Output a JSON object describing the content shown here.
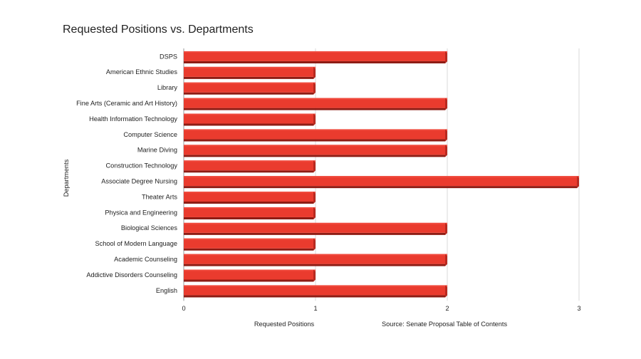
{
  "chart_data": {
    "type": "bar",
    "orientation": "horizontal",
    "title": "Requested Positions vs. Departments",
    "xlabel": "Requested Positions",
    "ylabel": "Departments",
    "source_note": "Source: Senate Proposal Table of Contents",
    "categories": [
      "DSPS",
      "American Ethnic Studies",
      "Library",
      "Fine Arts (Ceramic and Art History)",
      "Health Information Technology",
      "Computer Science",
      "Marine Diving",
      "Construction Technology",
      "Associate Degree Nursing",
      "Theater Arts",
      "Physica and Engineering",
      "Biological Sciences",
      "School of Modern Language",
      "Academic Counseling",
      "Addictive Disorders Counseling",
      "English"
    ],
    "values": [
      2,
      1,
      1,
      2,
      1,
      2,
      2,
      1,
      3,
      1,
      1,
      2,
      1,
      2,
      1,
      2
    ],
    "xlim": [
      0,
      3
    ],
    "xticks": [
      "0",
      "1",
      "2",
      "3"
    ],
    "grid": true,
    "legend": "none",
    "colors": {
      "bar": "#ea3b2e",
      "bar_top": "#f04a3d",
      "bar_shadow": "#8e1c14",
      "bar_side": "#b82a20"
    }
  }
}
